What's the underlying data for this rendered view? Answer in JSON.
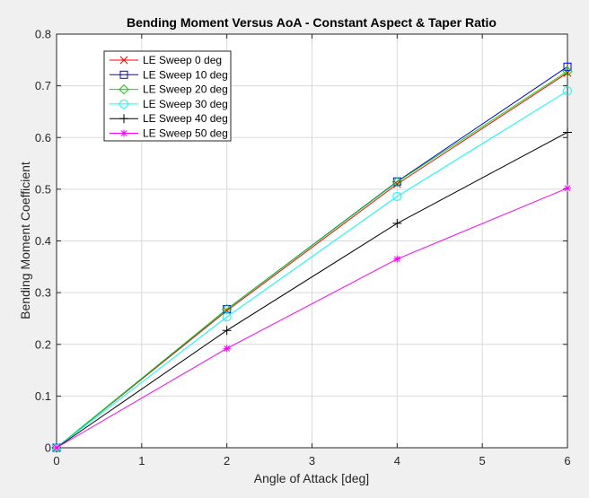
{
  "chart_data": {
    "type": "line",
    "title": "Bending Moment Versus AoA - Constant Aspect & Taper Ratio",
    "xlabel": "Angle of Attack [deg]",
    "ylabel": "Bending Moment Coefficient",
    "xlim": [
      0,
      6
    ],
    "ylim": [
      0,
      0.8
    ],
    "xticks": [
      0,
      1,
      2,
      3,
      4,
      5,
      6
    ],
    "yticks": [
      0,
      0.1,
      0.2,
      0.3,
      0.4,
      0.5,
      0.6,
      0.7,
      0.8
    ],
    "xtick_labels": [
      "0",
      "1",
      "2",
      "3",
      "4",
      "5",
      "6"
    ],
    "ytick_labels": [
      "0",
      "0.1",
      "0.2",
      "0.3",
      "0.4",
      "0.5",
      "0.6",
      "0.7",
      "0.8"
    ],
    "grid": true,
    "legend_position": "top-left",
    "x": [
      0,
      2,
      4,
      6
    ],
    "series": [
      {
        "name": "LE Sweep 0 deg",
        "color": "#ff0000",
        "marker": "x",
        "values": [
          0,
          0.265,
          0.51,
          0.725
        ]
      },
      {
        "name": "LE Sweep 10 deg",
        "color": "#0000ff",
        "marker": "square",
        "values": [
          0,
          0.268,
          0.515,
          0.737
        ]
      },
      {
        "name": "LE Sweep 20 deg",
        "color": "#00dd00",
        "marker": "diamond",
        "values": [
          0,
          0.268,
          0.514,
          0.728
        ]
      },
      {
        "name": "LE Sweep 30 deg",
        "color": "#00ffff",
        "marker": "circle",
        "values": [
          0,
          0.253,
          0.486,
          0.69
        ]
      },
      {
        "name": "LE Sweep 40 deg",
        "color": "#000000",
        "marker": "plus",
        "values": [
          0,
          0.227,
          0.434,
          0.61
        ]
      },
      {
        "name": "LE Sweep 50 deg",
        "color": "#ff00ff",
        "marker": "asterisk",
        "values": [
          0,
          0.192,
          0.365,
          0.502
        ]
      }
    ]
  }
}
